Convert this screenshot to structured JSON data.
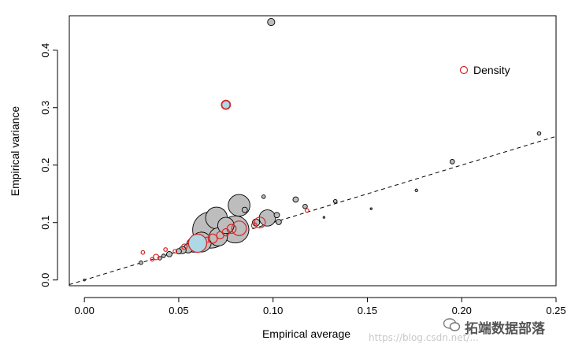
{
  "chart_data": {
    "type": "scatter",
    "xlabel": "Empirical average",
    "ylabel": "Empirical variance",
    "xlim": [
      -0.008,
      0.25
    ],
    "ylim": [
      -0.01,
      0.46
    ],
    "x_ticks": [
      0.0,
      0.05,
      0.1,
      0.15,
      0.2,
      0.25
    ],
    "x_tick_labels": [
      "0.00",
      "0.05",
      "0.10",
      "0.15",
      "0.20",
      "0.25"
    ],
    "y_ticks": [
      0.0,
      0.1,
      0.2,
      0.3,
      0.4
    ],
    "y_tick_labels": [
      "0.0",
      "0.1",
      "0.2",
      "0.3",
      "0.4"
    ],
    "reference_line": {
      "style": "dashed",
      "slope": 1.0,
      "intercept": 0.0
    },
    "legend": {
      "position": "top-right",
      "entries": [
        {
          "label": "Density",
          "marker": "open-circle",
          "color": "#d62728"
        }
      ]
    },
    "colors": {
      "gray_fill": "#bdbdbd",
      "gray_edge": "#000000",
      "red_edge": "#d62728",
      "blue_fill": "#add8e6"
    },
    "series": [
      {
        "group": "gray",
        "points": [
          {
            "x": 0.099,
            "y": 0.449,
            "size": 4
          },
          {
            "x": 0.241,
            "y": 0.255,
            "size": 2
          },
          {
            "x": 0.195,
            "y": 0.206,
            "size": 2.5
          },
          {
            "x": 0.176,
            "y": 0.156,
            "size": 1.5
          },
          {
            "x": 0.152,
            "y": 0.124,
            "size": 1
          },
          {
            "x": 0.133,
            "y": 0.137,
            "size": 2
          },
          {
            "x": 0.127,
            "y": 0.109,
            "size": 1
          },
          {
            "x": 0.117,
            "y": 0.128,
            "size": 2.5
          },
          {
            "x": 0.112,
            "y": 0.14,
            "size": 3
          },
          {
            "x": 0.103,
            "y": 0.101,
            "size": 3
          },
          {
            "x": 0.102,
            "y": 0.113,
            "size": 3
          },
          {
            "x": 0.095,
            "y": 0.145,
            "size": 2
          },
          {
            "x": 0.097,
            "y": 0.108,
            "size": 9
          },
          {
            "x": 0.091,
            "y": 0.1,
            "size": 4
          },
          {
            "x": 0.082,
            "y": 0.13,
            "size": 12
          },
          {
            "x": 0.085,
            "y": 0.122,
            "size": 3
          },
          {
            "x": 0.07,
            "y": 0.108,
            "size": 12
          },
          {
            "x": 0.067,
            "y": 0.087,
            "size": 20
          },
          {
            "x": 0.08,
            "y": 0.088,
            "size": 15
          },
          {
            "x": 0.075,
            "y": 0.095,
            "size": 9
          },
          {
            "x": 0.071,
            "y": 0.075,
            "size": 10
          },
          {
            "x": 0.062,
            "y": 0.066,
            "size": 11
          },
          {
            "x": 0.058,
            "y": 0.061,
            "size": 8
          },
          {
            "x": 0.055,
            "y": 0.055,
            "size": 5
          },
          {
            "x": 0.052,
            "y": 0.052,
            "size": 4
          },
          {
            "x": 0.05,
            "y": 0.05,
            "size": 3
          },
          {
            "x": 0.045,
            "y": 0.045,
            "size": 3
          },
          {
            "x": 0.042,
            "y": 0.042,
            "size": 2
          },
          {
            "x": 0.04,
            "y": 0.038,
            "size": 2
          },
          {
            "x": 0.03,
            "y": 0.03,
            "size": 2
          },
          {
            "x": 0.0,
            "y": 0.0,
            "size": 1
          },
          {
            "x": 0.075,
            "y": 0.305,
            "size": 5
          }
        ]
      },
      {
        "group": "red",
        "name": "Density",
        "points": [
          {
            "x": 0.075,
            "y": 0.305,
            "size": 5
          },
          {
            "x": 0.118,
            "y": 0.121,
            "size": 2
          },
          {
            "x": 0.093,
            "y": 0.1,
            "size": 6
          },
          {
            "x": 0.09,
            "y": 0.095,
            "size": 3
          },
          {
            "x": 0.082,
            "y": 0.09,
            "size": 8
          },
          {
            "x": 0.078,
            "y": 0.089,
            "size": 5
          },
          {
            "x": 0.075,
            "y": 0.083,
            "size": 4
          },
          {
            "x": 0.072,
            "y": 0.078,
            "size": 4
          },
          {
            "x": 0.068,
            "y": 0.072,
            "size": 5
          },
          {
            "x": 0.065,
            "y": 0.07,
            "size": 3
          },
          {
            "x": 0.06,
            "y": 0.064,
            "size": 10
          },
          {
            "x": 0.053,
            "y": 0.058,
            "size": 3
          },
          {
            "x": 0.048,
            "y": 0.05,
            "size": 2
          },
          {
            "x": 0.043,
            "y": 0.053,
            "size": 2
          },
          {
            "x": 0.038,
            "y": 0.04,
            "size": 3
          },
          {
            "x": 0.031,
            "y": 0.048,
            "size": 2
          },
          {
            "x": 0.036,
            "y": 0.036,
            "size": 2
          }
        ]
      },
      {
        "group": "blue",
        "points": [
          {
            "x": 0.06,
            "y": 0.064,
            "size": 10
          },
          {
            "x": 0.075,
            "y": 0.305,
            "size": 4.5
          }
        ]
      }
    ]
  },
  "watermark": {
    "url": "https://blog.csdn.net/...",
    "brand": "拓端数据部落"
  }
}
